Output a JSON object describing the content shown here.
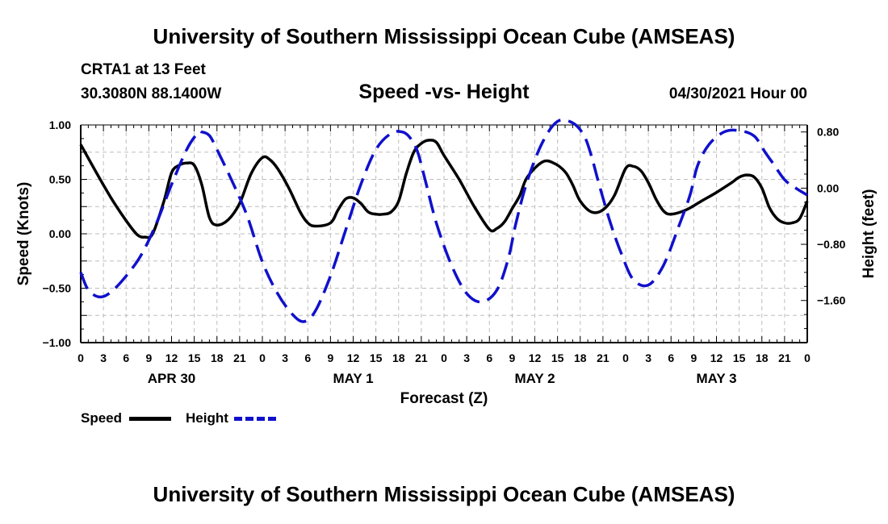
{
  "header": {
    "title": "University of Southern Mississippi Ocean Cube (AMSEAS)",
    "station": "CRTA1 at 13 Feet",
    "coords": "30.3080N  88.1400W",
    "chart_title": "Speed -vs- Height",
    "date_hour": "04/30/2021 Hour 00"
  },
  "footer": {
    "title": "University of Southern Mississippi Ocean Cube (AMSEAS)"
  },
  "legend": {
    "speed_label": "Speed",
    "height_label": "Height"
  },
  "colors": {
    "speed": "#000000",
    "height": "#1010cc",
    "grid": "#bdbdbd"
  },
  "chart_data": {
    "type": "line",
    "title": "Speed -vs- Height",
    "xlabel": "Forecast (Z)",
    "ylabel": "Speed (Knots)",
    "y2label": "Height (feet)",
    "xlim": [
      0,
      96
    ],
    "ylim": [
      -1.0,
      1.0
    ],
    "y2lim": [
      -2.2,
      0.9
    ],
    "x_ticks": [
      0,
      3,
      6,
      9,
      12,
      15,
      18,
      21,
      24,
      27,
      30,
      33,
      36,
      39,
      42,
      45,
      48,
      51,
      54,
      57,
      60,
      63,
      66,
      69,
      72,
      75,
      78,
      81,
      84,
      87,
      90,
      93,
      96
    ],
    "x_tick_labels": [
      "0",
      "3",
      "6",
      "9",
      "12",
      "15",
      "18",
      "21",
      "0",
      "3",
      "6",
      "9",
      "12",
      "15",
      "18",
      "21",
      "0",
      "3",
      "6",
      "9",
      "12",
      "15",
      "18",
      "21",
      "0",
      "3",
      "6",
      "9",
      "12",
      "15",
      "18",
      "21",
      "0"
    ],
    "day_labels": [
      {
        "hour": 12,
        "label": "APR 30"
      },
      {
        "hour": 36,
        "label": "MAY 1"
      },
      {
        "hour": 60,
        "label": "MAY 2"
      },
      {
        "hour": 84,
        "label": "MAY 3"
      }
    ],
    "y_ticks": [
      1.0,
      0.5,
      0.0,
      -0.5,
      -1.0
    ],
    "y_tick_labels": [
      "1.00",
      "0.50",
      "0.00",
      "−0.50",
      "−1.00"
    ],
    "y2_ticks": [
      0.8,
      0.0,
      -0.8,
      -1.6
    ],
    "y2_tick_labels": [
      "0.80",
      "0.00",
      "−0.80",
      "−1.60"
    ],
    "grid": true,
    "series": [
      {
        "name": "Speed",
        "axis": "left",
        "style": "solid",
        "x": [
          0,
          2,
          4,
          6,
          7.5,
          8.5,
          9.5,
          11,
          12,
          13,
          14,
          15,
          16,
          17,
          18,
          19.5,
          21,
          22.5,
          24,
          25,
          26,
          27.5,
          29,
          30,
          31,
          33,
          34,
          35,
          36,
          37,
          38,
          39,
          40,
          41,
          42,
          43,
          44,
          45,
          46,
          47,
          48,
          50,
          52,
          54,
          55,
          56,
          57,
          58,
          59,
          61,
          62.5,
          64,
          65,
          66,
          67.5,
          69,
          70.5,
          72,
          73,
          74,
          75,
          76,
          77,
          78,
          80,
          82,
          84,
          86,
          87,
          88,
          89,
          90,
          91,
          92,
          93,
          94,
          95,
          96
        ],
        "values": [
          0.82,
          0.57,
          0.33,
          0.12,
          -0.01,
          -0.03,
          0.0,
          0.3,
          0.56,
          0.63,
          0.65,
          0.63,
          0.45,
          0.15,
          0.08,
          0.13,
          0.28,
          0.55,
          0.7,
          0.68,
          0.6,
          0.42,
          0.2,
          0.1,
          0.07,
          0.1,
          0.22,
          0.32,
          0.33,
          0.28,
          0.2,
          0.18,
          0.18,
          0.2,
          0.3,
          0.55,
          0.75,
          0.83,
          0.86,
          0.84,
          0.72,
          0.5,
          0.25,
          0.04,
          0.05,
          0.11,
          0.23,
          0.35,
          0.52,
          0.66,
          0.65,
          0.57,
          0.45,
          0.3,
          0.2,
          0.22,
          0.35,
          0.6,
          0.62,
          0.58,
          0.47,
          0.32,
          0.21,
          0.18,
          0.22,
          0.3,
          0.38,
          0.47,
          0.52,
          0.54,
          0.52,
          0.42,
          0.24,
          0.14,
          0.1,
          0.1,
          0.14,
          0.3
        ]
      },
      {
        "name": "Height",
        "axis": "right",
        "style": "dashed",
        "x": [
          0,
          1,
          2.5,
          4,
          6,
          8,
          10,
          12,
          14,
          15.5,
          16,
          17,
          18,
          20,
          22,
          24,
          26,
          28,
          29.5,
          31,
          33,
          35,
          37,
          39,
          41,
          42.5,
          43.5,
          44.5,
          45.5,
          47,
          49,
          51,
          53,
          55,
          56.5,
          57.5,
          59,
          61,
          63,
          65,
          66.5,
          67.5,
          68.5,
          70,
          71.5,
          73,
          75,
          77,
          79,
          80.5,
          81.5,
          83,
          85,
          87,
          89,
          90.5,
          91.5,
          93,
          94.5,
          96
        ],
        "values": [
          -1.2,
          -1.45,
          -1.55,
          -1.48,
          -1.25,
          -0.95,
          -0.5,
          0.05,
          0.55,
          0.79,
          0.8,
          0.75,
          0.55,
          0.1,
          -0.4,
          -1.05,
          -1.5,
          -1.8,
          -1.9,
          -1.75,
          -1.25,
          -0.6,
          0.05,
          0.55,
          0.78,
          0.8,
          0.72,
          0.52,
          0.12,
          -0.5,
          -1.1,
          -1.5,
          -1.62,
          -1.45,
          -1.0,
          -0.5,
          0.1,
          0.65,
          0.95,
          0.93,
          0.75,
          0.45,
          0.05,
          -0.5,
          -0.95,
          -1.3,
          -1.38,
          -1.1,
          -0.55,
          -0.1,
          0.32,
          0.62,
          0.8,
          0.82,
          0.74,
          0.5,
          0.35,
          0.12,
          0.0,
          -0.1
        ]
      }
    ]
  }
}
